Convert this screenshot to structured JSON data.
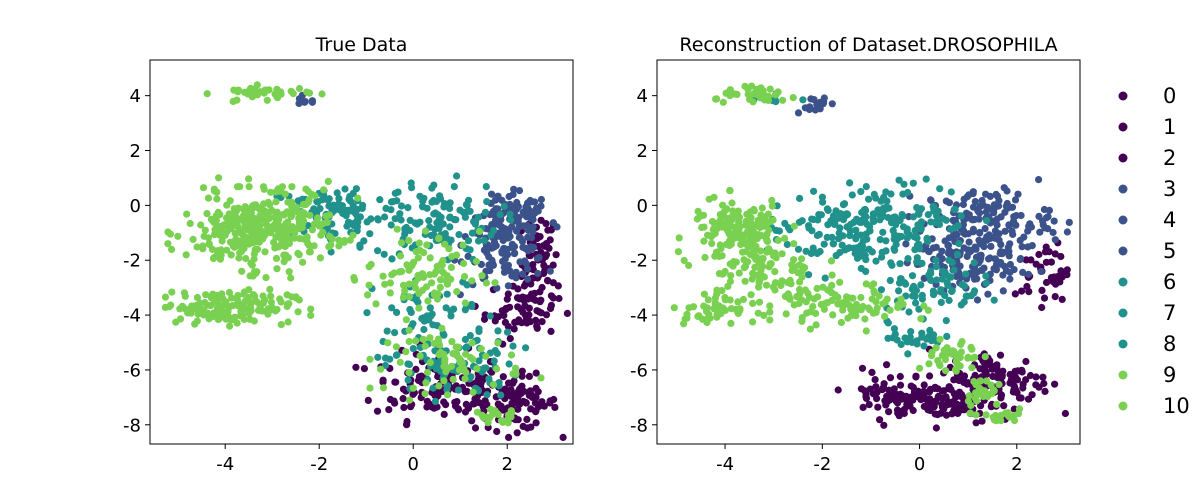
{
  "chart_data": [
    {
      "type": "scatter",
      "title": "True Data",
      "xlabel": "",
      "ylabel": "",
      "xlim": [
        -5.6,
        3.4
      ],
      "ylim": [
        -8.7,
        5.3
      ],
      "xticks": [
        -4,
        -2,
        0,
        2
      ],
      "yticks": [
        4,
        2,
        0,
        -2,
        -4,
        -6,
        -8
      ],
      "xtick_labels": [
        "-4",
        "-2",
        "0",
        "2"
      ],
      "ytick_labels": [
        "4",
        "2",
        "0",
        "-2",
        "-4",
        "-6",
        "-8"
      ],
      "grid": false,
      "regions": [
        {
          "label": 10,
          "cx": -3.2,
          "cy": 4.1,
          "rx": 0.9,
          "ry": 0.22,
          "n": 40
        },
        {
          "label": 3,
          "cx": -2.3,
          "cy": 3.8,
          "rx": 0.25,
          "ry": 0.15,
          "n": 8
        },
        {
          "label": 10,
          "cx": -3.4,
          "cy": -1.0,
          "rx": 1.3,
          "ry": 1.2,
          "n": 220
        },
        {
          "label": 9,
          "cx": -3.0,
          "cy": -0.6,
          "rx": 1.3,
          "ry": 1.3,
          "n": 120
        },
        {
          "label": 10,
          "cx": -4.0,
          "cy": -3.7,
          "rx": 1.3,
          "ry": 0.55,
          "n": 150
        },
        {
          "label": 6,
          "cx": -1.6,
          "cy": -0.3,
          "rx": 1.4,
          "ry": 1.0,
          "n": 110
        },
        {
          "label": 7,
          "cx": 0.5,
          "cy": -0.6,
          "rx": 1.2,
          "ry": 1.3,
          "n": 110
        },
        {
          "label": 4,
          "cx": 2.0,
          "cy": -1.3,
          "rx": 0.8,
          "ry": 1.4,
          "n": 90
        },
        {
          "label": 5,
          "cx": 2.0,
          "cy": -1.2,
          "rx": 0.7,
          "ry": 1.3,
          "n": 60
        },
        {
          "label": 3,
          "cx": 2.2,
          "cy": -0.3,
          "rx": 0.6,
          "ry": 0.6,
          "n": 40
        },
        {
          "label": 0,
          "cx": 2.7,
          "cy": -2.1,
          "rx": 0.35,
          "ry": 1.7,
          "n": 70
        },
        {
          "label": 1,
          "cx": 2.3,
          "cy": -3.8,
          "rx": 0.7,
          "ry": 0.9,
          "n": 60
        },
        {
          "label": 0,
          "cx": 0.6,
          "cy": -6.6,
          "rx": 1.3,
          "ry": 1.1,
          "n": 140
        },
        {
          "label": 2,
          "cx": 2.2,
          "cy": -7.2,
          "rx": 0.8,
          "ry": 0.9,
          "n": 90
        },
        {
          "label": 7,
          "cx": 0.8,
          "cy": -5.8,
          "rx": 1.3,
          "ry": 1.1,
          "n": 90
        },
        {
          "label": 9,
          "cx": 0.9,
          "cy": -5.7,
          "rx": 1.3,
          "ry": 1.0,
          "n": 70
        },
        {
          "label": 10,
          "cx": 0.2,
          "cy": -2.5,
          "rx": 1.1,
          "ry": 1.4,
          "n": 90
        },
        {
          "label": 8,
          "cx": 0.5,
          "cy": -4.0,
          "rx": 1.2,
          "ry": 1.2,
          "n": 50
        },
        {
          "label": 9,
          "cx": 1.8,
          "cy": -7.7,
          "rx": 0.45,
          "ry": 0.25,
          "n": 20
        }
      ]
    },
    {
      "type": "scatter",
      "title": "Reconstruction of Dataset.DROSOPHILA",
      "xlabel": "",
      "ylabel": "",
      "xlim": [
        -5.4,
        3.3
      ],
      "ylim": [
        -8.7,
        5.3
      ],
      "xticks": [
        -4,
        -2,
        0,
        2
      ],
      "yticks": [
        4,
        2,
        0,
        -2,
        -4,
        -6,
        -8
      ],
      "xtick_labels": [
        "-4",
        "-2",
        "0",
        "2"
      ],
      "ytick_labels": [
        "4",
        "2",
        "0",
        "-2",
        "-4",
        "-6",
        "-8"
      ],
      "grid": false,
      "regions": [
        {
          "label": 10,
          "cx": -3.3,
          "cy": 4.0,
          "rx": 0.8,
          "ry": 0.25,
          "n": 35
        },
        {
          "label": 3,
          "cx": -2.2,
          "cy": 3.7,
          "rx": 0.35,
          "ry": 0.25,
          "n": 14
        },
        {
          "label": 7,
          "cx": -3.0,
          "cy": 3.9,
          "rx": 0.5,
          "ry": 0.2,
          "n": 10
        },
        {
          "label": 10,
          "cx": -3.7,
          "cy": -1.0,
          "rx": 0.9,
          "ry": 1.1,
          "n": 160
        },
        {
          "label": 9,
          "cx": -3.3,
          "cy": -2.5,
          "rx": 1.1,
          "ry": 1.0,
          "n": 70
        },
        {
          "label": 10,
          "cx": -4.2,
          "cy": -3.8,
          "rx": 0.8,
          "ry": 0.4,
          "n": 50
        },
        {
          "label": 6,
          "cx": -1.7,
          "cy": -1.0,
          "rx": 1.3,
          "ry": 1.3,
          "n": 120
        },
        {
          "label": 7,
          "cx": -0.3,
          "cy": -0.4,
          "rx": 1.2,
          "ry": 1.1,
          "n": 110
        },
        {
          "label": 8,
          "cx": 0.2,
          "cy": -2.8,
          "rx": 1.0,
          "ry": 1.0,
          "n": 80
        },
        {
          "label": 3,
          "cx": 1.4,
          "cy": -0.6,
          "rx": 1.2,
          "ry": 1.1,
          "n": 150
        },
        {
          "label": 4,
          "cx": 1.1,
          "cy": -2.2,
          "rx": 1.0,
          "ry": 0.9,
          "n": 70
        },
        {
          "label": 5,
          "cx": 0.6,
          "cy": -2.0,
          "rx": 0.9,
          "ry": 0.8,
          "n": 40
        },
        {
          "label": 0,
          "cx": 2.6,
          "cy": -2.4,
          "rx": 0.45,
          "ry": 1.0,
          "n": 40
        },
        {
          "label": 1,
          "cx": 1.6,
          "cy": -6.4,
          "rx": 1.0,
          "ry": 1.0,
          "n": 120
        },
        {
          "label": 2,
          "cx": -0.4,
          "cy": -6.9,
          "rx": 1.0,
          "ry": 0.8,
          "n": 90
        },
        {
          "label": 0,
          "cx": 0.6,
          "cy": -7.2,
          "rx": 0.9,
          "ry": 0.7,
          "n": 60
        },
        {
          "label": 9,
          "cx": -1.5,
          "cy": -3.6,
          "rx": 1.2,
          "ry": 0.7,
          "n": 90
        },
        {
          "label": 9,
          "cx": 0.7,
          "cy": -5.6,
          "rx": 0.5,
          "ry": 0.7,
          "n": 40
        },
        {
          "label": 9,
          "cx": 1.3,
          "cy": -6.8,
          "rx": 0.35,
          "ry": 0.6,
          "n": 30
        },
        {
          "label": 9,
          "cx": 1.9,
          "cy": -7.7,
          "rx": 0.35,
          "ry": 0.2,
          "n": 15
        },
        {
          "label": 6,
          "cx": -0.1,
          "cy": -4.8,
          "rx": 0.5,
          "ry": 0.5,
          "n": 30
        }
      ]
    }
  ],
  "legend": {
    "placement": "right",
    "entries": [
      {
        "label": "0",
        "color": "#440154"
      },
      {
        "label": "1",
        "color": "#440154"
      },
      {
        "label": "2",
        "color": "#440154"
      },
      {
        "label": "3",
        "color": "#3b528b"
      },
      {
        "label": "4",
        "color": "#3b528b"
      },
      {
        "label": "5",
        "color": "#3b528b"
      },
      {
        "label": "6",
        "color": "#21918c"
      },
      {
        "label": "7",
        "color": "#21918c"
      },
      {
        "label": "8",
        "color": "#21918c"
      },
      {
        "label": "9",
        "color": "#7ad151"
      },
      {
        "label": "10",
        "color": "#7ad151"
      }
    ]
  }
}
